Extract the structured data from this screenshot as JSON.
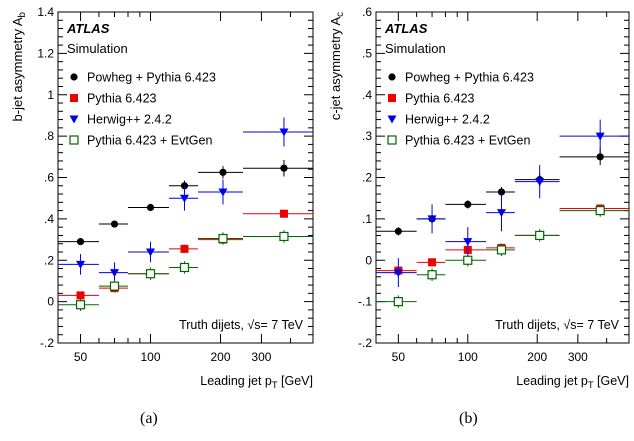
{
  "panels": [
    {
      "caption": "(a)",
      "atlas_label": "ATLAS",
      "sim_label": "Simulation",
      "annotation": "Truth dijets, √s= 7 TeV",
      "chart_data": {
        "type": "scatter",
        "xlabel": "Leading jet p_T [GeV]",
        "ylabel": "b-jet asymmetry A_b",
        "x_scale": "log",
        "xlim": [
          40,
          500
        ],
        "ylim": [
          -0.2,
          1.4
        ],
        "x_ticks": [
          50,
          100,
          200,
          300
        ],
        "y_ticks": [
          -0.2,
          0,
          0.2,
          0.4,
          0.6,
          0.8,
          1,
          1.2,
          1.4
        ],
        "legend_position": "top-left",
        "bins": [
          [
            40,
            60
          ],
          [
            60,
            80
          ],
          [
            80,
            120
          ],
          [
            120,
            160
          ],
          [
            160,
            250
          ],
          [
            250,
            500
          ]
        ],
        "series": [
          {
            "name": "Powheg + Pythia 6.423",
            "marker": "filled-circle",
            "color": "#000000",
            "x": [
              50,
              70,
              100,
              140,
              205,
              375
            ],
            "y": [
              0.29,
              0.375,
              0.455,
              0.56,
              0.625,
              0.645
            ],
            "yerr": [
              0.012,
              0.015,
              0.015,
              0.025,
              0.03,
              0.04
            ]
          },
          {
            "name": "Pythia 6.423",
            "marker": "filled-square",
            "color": "#ee0000",
            "x": [
              50,
              70,
              100,
              140,
              205,
              375
            ],
            "y": [
              0.03,
              0.065,
              0.135,
              0.255,
              0.3,
              0.425
            ],
            "yerr": [
              0.012,
              0.015,
              0.015,
              0.02,
              0.02,
              0.02
            ]
          },
          {
            "name": "Herwig++ 2.4.2",
            "marker": "filled-triangle-down",
            "color": "#0000ee",
            "x": [
              50,
              70,
              100,
              140,
              205,
              375
            ],
            "y": [
              0.18,
              0.14,
              0.24,
              0.5,
              0.53,
              0.82
            ],
            "yerr": [
              0.05,
              0.05,
              0.05,
              0.06,
              0.06,
              0.07
            ]
          },
          {
            "name": "Pythia 6.423 + EvtGen",
            "marker": "open-square",
            "color": "#006600",
            "x": [
              50,
              70,
              100,
              140,
              205,
              375
            ],
            "y": [
              -0.015,
              0.075,
              0.135,
              0.165,
              0.305,
              0.315
            ],
            "yerr": [
              0.03,
              0.03,
              0.03,
              0.03,
              0.03,
              0.03
            ]
          }
        ]
      }
    },
    {
      "caption": "(b)",
      "atlas_label": "ATLAS",
      "sim_label": "Simulation",
      "annotation": "Truth dijets, √s= 7 TeV",
      "chart_data": {
        "type": "scatter",
        "xlabel": "Leading jet p_T [GeV]",
        "ylabel": "c-jet asymmetry A_c",
        "x_scale": "log",
        "xlim": [
          40,
          500
        ],
        "ylim": [
          -0.2,
          0.6
        ],
        "x_ticks": [
          50,
          100,
          200,
          300
        ],
        "y_ticks": [
          -0.2,
          -0.1,
          0,
          0.1,
          0.2,
          0.3,
          0.4,
          0.5,
          0.6
        ],
        "legend_position": "top-left",
        "bins": [
          [
            40,
            60
          ],
          [
            60,
            80
          ],
          [
            80,
            120
          ],
          [
            120,
            160
          ],
          [
            160,
            250
          ],
          [
            250,
            500
          ]
        ],
        "series": [
          {
            "name": "Powheg + Pythia 6.423",
            "marker": "filled-circle",
            "color": "#000000",
            "x": [
              50,
              70,
              100,
              140,
              205,
              375
            ],
            "y": [
              0.07,
              0.1,
              0.135,
              0.165,
              0.195,
              0.25
            ],
            "yerr": [
              0.01,
              0.01,
              0.01,
              0.012,
              0.015,
              0.02
            ]
          },
          {
            "name": "Pythia 6.423",
            "marker": "filled-square",
            "color": "#ee0000",
            "x": [
              50,
              70,
              100,
              140,
              205,
              375
            ],
            "y": [
              -0.025,
              -0.005,
              0.025,
              0.03,
              0.06,
              0.125
            ],
            "yerr": [
              0.01,
              0.01,
              0.01,
              0.01,
              0.01,
              0.01
            ]
          },
          {
            "name": "Herwig++ 2.4.2",
            "marker": "filled-triangle-down",
            "color": "#0000ee",
            "x": [
              50,
              70,
              100,
              140,
              205,
              375
            ],
            "y": [
              -0.03,
              0.1,
              0.045,
              0.115,
              0.19,
              0.3
            ],
            "yerr": [
              0.035,
              0.035,
              0.035,
              0.045,
              0.04,
              0.04
            ]
          },
          {
            "name": "Pythia 6.423 + EvtGen",
            "marker": "open-square",
            "color": "#006600",
            "x": [
              50,
              70,
              100,
              140,
              205,
              375
            ],
            "y": [
              -0.1,
              -0.035,
              0.0,
              0.025,
              0.06,
              0.12
            ],
            "yerr": [
              0.015,
              0.015,
              0.015,
              0.015,
              0.015,
              0.015
            ]
          }
        ]
      }
    }
  ]
}
